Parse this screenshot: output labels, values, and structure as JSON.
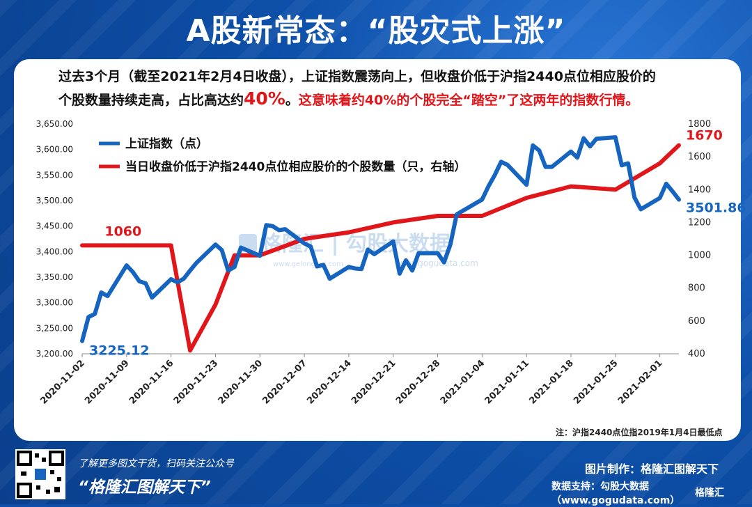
{
  "title": "A股新常态：“股灾式上涨”",
  "description": {
    "line1": "过去3个月（截至2021年2月4日收盘），上证指数震荡向上，但收盘价低于沪指2440点位相应股价的",
    "line2a": "个股数量持续走高，占比高达约",
    "line2b": "40%",
    "line2c": "。",
    "line2d": "这意味着约40%的个股完全“踏空”了这两年的指数行情。"
  },
  "watermark": {
    "text": "格隆汇 | 勾股大数据",
    "subtext": "www.gelonghui.com",
    "subtext2": "www.gogudata.com"
  },
  "note": "注：沪指2440点位指2019年1月4日最低点",
  "footer": {
    "promo": "了解更多图文干货，扫码关注公众号",
    "slogan": "“格隆汇图解天下”",
    "made_by": "图片制作：格隆汇图解天下",
    "data_support": "数据支持：勾股大数据（www.gogudata.com）",
    "brand": "格隆汇"
  },
  "colors": {
    "blue": "#1565c0",
    "red": "#e0161b",
    "panel": "#ffffff",
    "bg": "#0d4fa8"
  },
  "chart_data": {
    "type": "line",
    "x_ticks": [
      "2020-11-02",
      "2020-11-09",
      "2020-11-16",
      "2020-11-23",
      "2020-11-30",
      "2020-12-07",
      "2020-12-14",
      "2020-12-21",
      "2020-12-28",
      "2021-01-04",
      "2021-01-11",
      "2021-01-18",
      "2021-01-25",
      "2021-02-01"
    ],
    "y_left_ticks": [
      "3,200.00",
      "3,250.00",
      "3,300.00",
      "3,350.00",
      "3,400.00",
      "3,450.00",
      "3,500.00",
      "3,550.00",
      "3,600.00",
      "3,650.00"
    ],
    "y_right_ticks": [
      "400",
      "600",
      "800",
      "1000",
      "1200",
      "1400",
      "1600",
      "1800"
    ],
    "ylim_left": [
      3200,
      3650
    ],
    "ylim_right": [
      400,
      1800
    ],
    "legend": [
      "上证指数（点）",
      "当日收盘价低于沪指2440点位相应股价的个股数量（只，右轴）"
    ],
    "legend_position": "top-left",
    "series": [
      {
        "name": "上证指数（点）",
        "axis": "left",
        "x": [
          "2020-11-02",
          "2020-11-03",
          "2020-11-04",
          "2020-11-05",
          "2020-11-06",
          "2020-11-09",
          "2020-11-10",
          "2020-11-11",
          "2020-11-12",
          "2020-11-13",
          "2020-11-16",
          "2020-11-17",
          "2020-11-18",
          "2020-11-19",
          "2020-11-20",
          "2020-11-23",
          "2020-11-24",
          "2020-11-25",
          "2020-11-26",
          "2020-11-27",
          "2020-11-30",
          "2020-12-01",
          "2020-12-02",
          "2020-12-03",
          "2020-12-04",
          "2020-12-07",
          "2020-12-08",
          "2020-12-09",
          "2020-12-10",
          "2020-12-11",
          "2020-12-14",
          "2020-12-15",
          "2020-12-16",
          "2020-12-17",
          "2020-12-18",
          "2020-12-21",
          "2020-12-22",
          "2020-12-23",
          "2020-12-24",
          "2020-12-25",
          "2020-12-28",
          "2020-12-29",
          "2020-12-30",
          "2020-12-31",
          "2021-01-04",
          "2021-01-05",
          "2021-01-06",
          "2021-01-07",
          "2021-01-08",
          "2021-01-11",
          "2021-01-12",
          "2021-01-13",
          "2021-01-14",
          "2021-01-15",
          "2021-01-18",
          "2021-01-19",
          "2021-01-20",
          "2021-01-21",
          "2021-01-22",
          "2021-01-25",
          "2021-01-26",
          "2021-01-27",
          "2021-01-28",
          "2021-01-29",
          "2021-02-01",
          "2021-02-02",
          "2021-02-03",
          "2021-02-04"
        ],
        "values": [
          3225.12,
          3272,
          3278,
          3320,
          3313,
          3373,
          3360,
          3342,
          3338,
          3310,
          3346,
          3340,
          3347,
          3363,
          3378,
          3414,
          3403,
          3363,
          3370,
          3408,
          3392,
          3452,
          3450,
          3442,
          3444,
          3416,
          3410,
          3371,
          3374,
          3347,
          3370,
          3367,
          3366,
          3404,
          3395,
          3420,
          3357,
          3383,
          3363,
          3397,
          3397,
          3379,
          3414,
          3473,
          3502,
          3528,
          3550,
          3576,
          3570,
          3531,
          3608,
          3598,
          3566,
          3566,
          3596,
          3584,
          3622,
          3606,
          3621,
          3624,
          3569,
          3573,
          3506,
          3483,
          3505,
          3533,
          3518,
          3501.86
        ]
      },
      {
        "name": "当日收盘价低于沪指2440点位相应股价的个股数量（只，右轴）",
        "axis": "right",
        "x": [
          "2020-11-02",
          "2020-11-09",
          "2020-11-16",
          "2020-11-19",
          "2020-11-23",
          "2020-11-26",
          "2020-11-30",
          "2020-12-07",
          "2020-12-14",
          "2020-12-21",
          "2020-12-28",
          "2021-01-04",
          "2021-01-11",
          "2021-01-18",
          "2021-01-25",
          "2021-02-01",
          "2021-02-04"
        ],
        "values": [
          1060,
          1060,
          1060,
          420,
          700,
          1000,
          1000,
          1100,
          1140,
          1200,
          1240,
          1240,
          1350,
          1420,
          1400,
          1560,
          1670
        ]
      }
    ],
    "annotations": [
      {
        "text": "3225.12",
        "series": "上证指数（点）",
        "at": "2020-11-02"
      },
      {
        "text": "3501.86",
        "series": "上证指数（点）",
        "at": "2021-02-04"
      },
      {
        "text": "1060",
        "series": "当日收盘价低于沪指2440点位相应股价的个股数量（只，右轴）",
        "at": "2020-11-09"
      },
      {
        "text": "1670",
        "series": "当日收盘价低于沪指2440点位相应股价的个股数量（只，右轴）",
        "at": "2021-02-04"
      }
    ]
  }
}
